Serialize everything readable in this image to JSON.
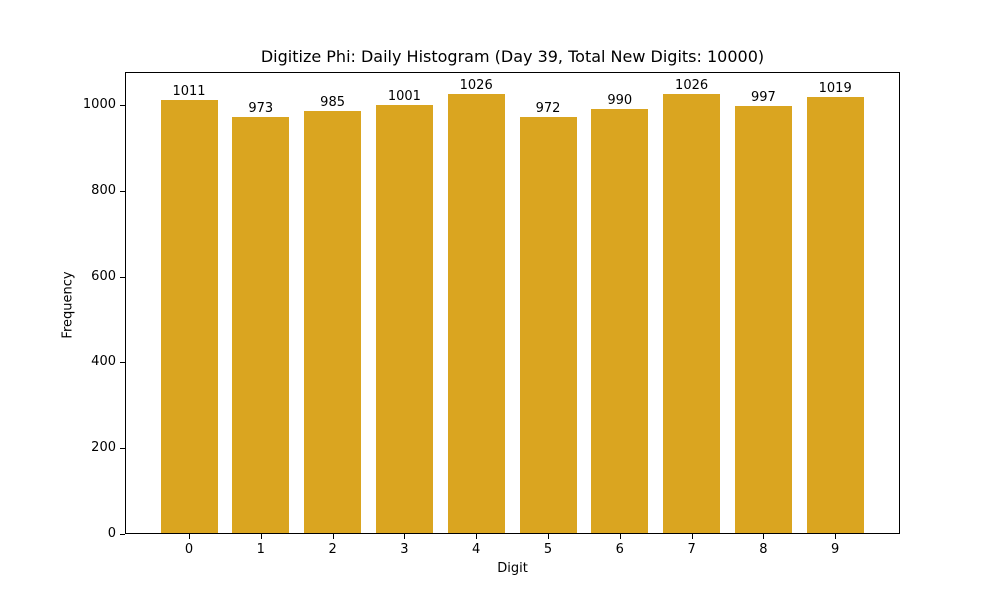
{
  "chart_data": {
    "type": "bar",
    "title": "Digitize Phi: Daily Histogram (Day 39, Total New Digits: 10000)",
    "xlabel": "Digit",
    "ylabel": "Frequency",
    "categories": [
      "0",
      "1",
      "2",
      "3",
      "4",
      "5",
      "6",
      "7",
      "8",
      "9"
    ],
    "values": [
      1011,
      973,
      985,
      1001,
      1026,
      972,
      990,
      1026,
      997,
      1019
    ],
    "bar_labels": [
      "1011",
      "973",
      "985",
      "1001",
      "1026",
      "972",
      "990",
      "1026",
      "997",
      "1019"
    ],
    "yticks": [
      0,
      200,
      400,
      600,
      800,
      1000
    ],
    "ytick_labels": [
      "0",
      "200",
      "400",
      "600",
      "800",
      "1000"
    ],
    "ylim": [
      0,
      1077
    ],
    "grid": false,
    "legend": null,
    "bar_color": "#DAA520"
  }
}
